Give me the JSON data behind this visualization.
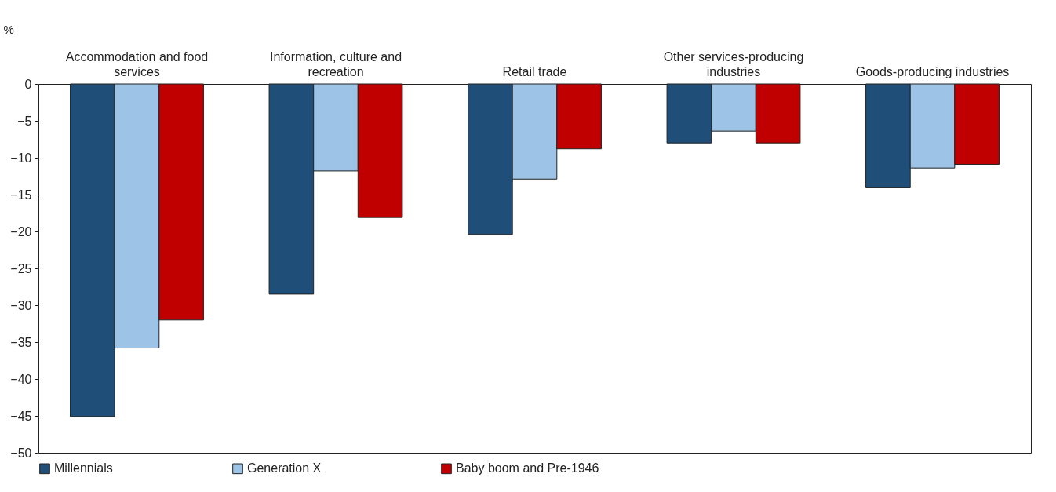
{
  "chart_data": {
    "type": "bar",
    "ylabel": "%",
    "categories": [
      "Accommodation and food services",
      "Information, culture and recreation",
      "Retail trade",
      "Other services-producing industries",
      "Goods-producing industries"
    ],
    "series": [
      {
        "name": "Millennials",
        "color": "#1f4e79",
        "values": [
          -45.1,
          -28.5,
          -20.4,
          -8.0,
          -14.0
        ]
      },
      {
        "name": "Generation X",
        "color": "#9dc3e6",
        "values": [
          -35.8,
          -11.8,
          -12.9,
          -6.4,
          -11.4
        ]
      },
      {
        "name": "Baby boom and Pre-1946",
        "color": "#c00000",
        "values": [
          -32.0,
          -18.1,
          -8.8,
          -8.0,
          -10.9
        ]
      }
    ],
    "ylim": [
      -50,
      0
    ],
    "yticks": [
      -50,
      -45,
      -40,
      -35,
      -30,
      -25,
      -20,
      -15,
      -10,
      -5,
      0
    ],
    "legend": "bottom"
  }
}
